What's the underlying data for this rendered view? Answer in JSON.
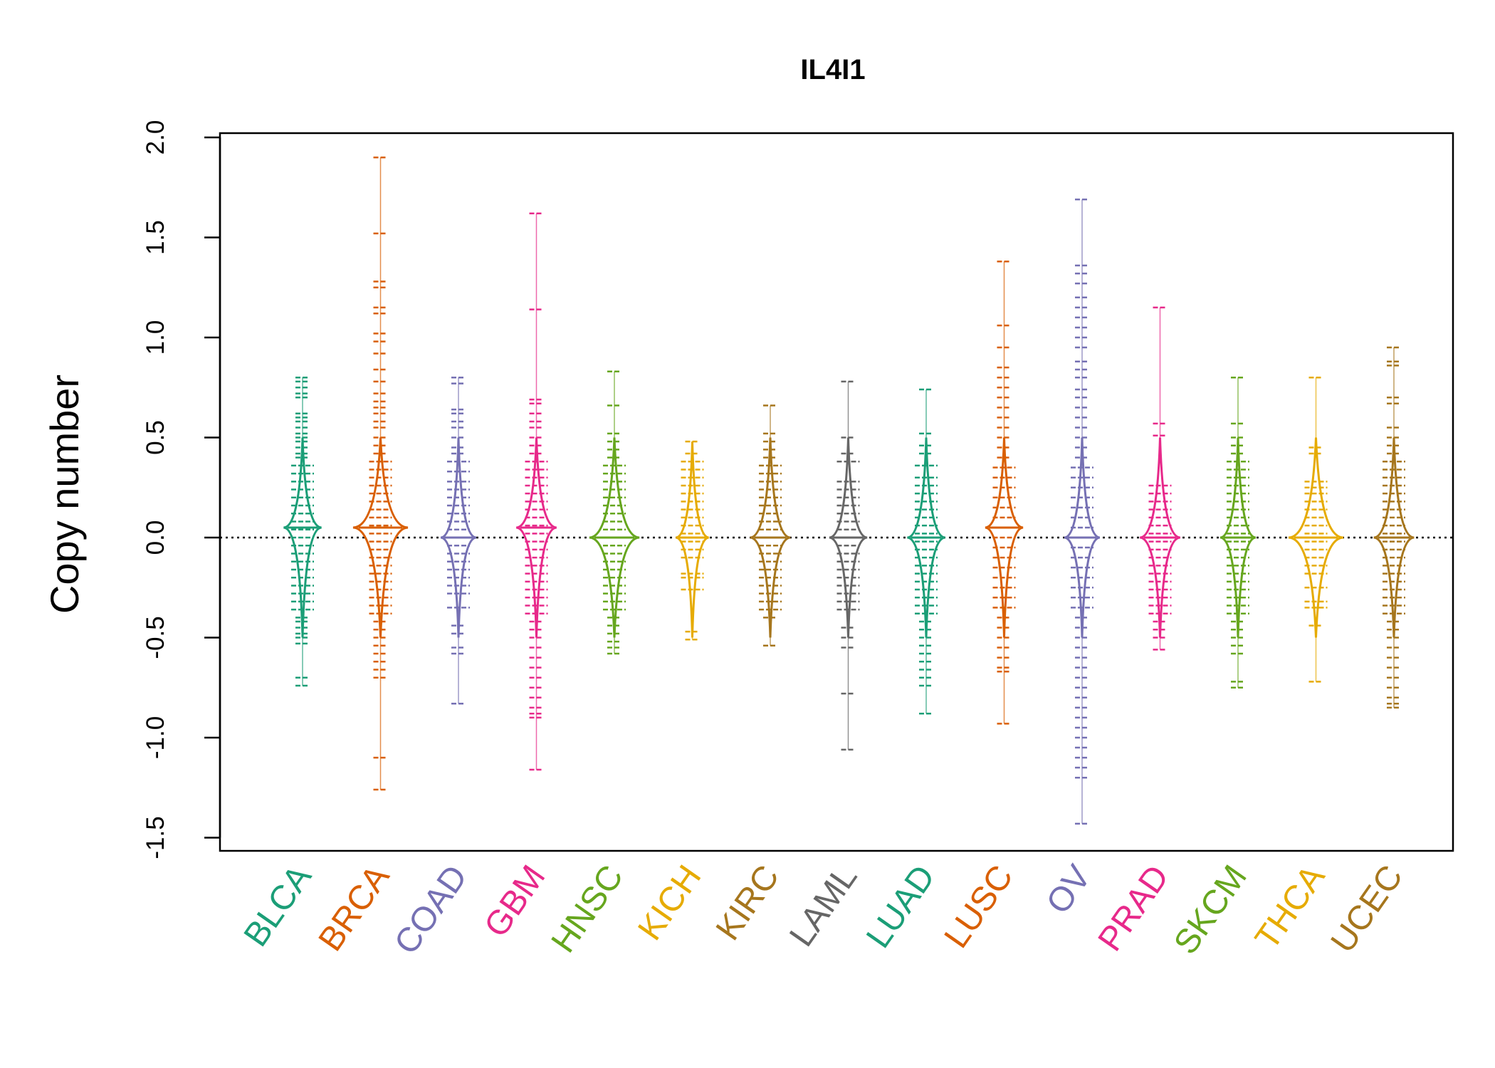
{
  "chart_data": {
    "type": "scatter",
    "subtype": "beanplot",
    "title": "IL4I1",
    "xlabel": "",
    "ylabel": "Copy number",
    "ylim": [
      -1.5,
      2.0
    ],
    "yticks": [
      "-1.5",
      "-1.0",
      "-0.5",
      "0.0",
      "0.5",
      "1.0",
      "1.5",
      "2.0"
    ],
    "reference_line": 0.0,
    "grid": false,
    "categories": [
      {
        "name": "BLCA",
        "color": "#1B9E77",
        "median": 0.05,
        "width": 0.55,
        "points": [
          0.8,
          0.78,
          0.75,
          0.72,
          0.7,
          0.62,
          0.6,
          0.58,
          0.55,
          0.52,
          0.5,
          0.48,
          0.45,
          0.42,
          0.4,
          0.36,
          0.32,
          0.28,
          0.24,
          0.2,
          0.16,
          0.12,
          0.08,
          0.04,
          0.0,
          -0.04,
          -0.08,
          -0.12,
          -0.16,
          -0.2,
          -0.24,
          -0.28,
          -0.32,
          -0.36,
          -0.4,
          -0.42,
          -0.45,
          -0.48,
          -0.5,
          -0.53,
          -0.7,
          -0.74
        ]
      },
      {
        "name": "BRCA",
        "color": "#D95F02",
        "median": 0.05,
        "width": 0.9,
        "points": [
          1.9,
          1.52,
          1.28,
          1.25,
          1.15,
          1.12,
          1.02,
          0.98,
          0.92,
          0.84,
          0.78,
          0.72,
          0.68,
          0.65,
          0.62,
          0.58,
          0.55,
          0.5,
          0.46,
          0.42,
          0.38,
          0.34,
          0.3,
          0.26,
          0.22,
          0.18,
          0.14,
          0.1,
          0.06,
          0.02,
          -0.02,
          -0.06,
          -0.1,
          -0.14,
          -0.18,
          -0.22,
          -0.26,
          -0.3,
          -0.34,
          -0.38,
          -0.42,
          -0.46,
          -0.5,
          -0.54,
          -0.58,
          -0.62,
          -0.66,
          -0.7,
          -1.1,
          -1.26
        ]
      },
      {
        "name": "COAD",
        "color": "#7570B3",
        "median": 0.0,
        "width": 0.5,
        "points": [
          0.8,
          0.77,
          0.64,
          0.62,
          0.58,
          0.55,
          0.5,
          0.45,
          0.42,
          0.38,
          0.33,
          0.28,
          0.24,
          0.2,
          0.16,
          0.12,
          0.08,
          0.04,
          0.0,
          -0.04,
          -0.08,
          -0.12,
          -0.16,
          -0.2,
          -0.24,
          -0.28,
          -0.35,
          -0.44,
          -0.48,
          -0.55,
          -0.58,
          -0.83
        ]
      },
      {
        "name": "GBM",
        "color": "#E7298A",
        "median": 0.05,
        "width": 0.6,
        "points": [
          1.62,
          1.14,
          0.69,
          0.67,
          0.62,
          0.58,
          0.55,
          0.5,
          0.46,
          0.42,
          0.38,
          0.34,
          0.3,
          0.26,
          0.22,
          0.18,
          0.14,
          0.1,
          0.06,
          0.02,
          -0.02,
          -0.06,
          -0.1,
          -0.14,
          -0.18,
          -0.22,
          -0.26,
          -0.3,
          -0.34,
          -0.38,
          -0.42,
          -0.46,
          -0.5,
          -0.55,
          -0.6,
          -0.65,
          -0.7,
          -0.75,
          -0.8,
          -0.85,
          -0.88,
          -0.9,
          -1.16
        ]
      },
      {
        "name": "HNSC",
        "color": "#66A61E",
        "median": 0.0,
        "width": 0.8,
        "points": [
          0.83,
          0.66,
          0.52,
          0.48,
          0.44,
          0.4,
          0.36,
          0.32,
          0.28,
          0.24,
          0.2,
          0.16,
          0.12,
          0.08,
          0.04,
          0.0,
          -0.04,
          -0.08,
          -0.12,
          -0.16,
          -0.2,
          -0.24,
          -0.28,
          -0.32,
          -0.36,
          -0.4,
          -0.44,
          -0.48,
          -0.52,
          -0.55,
          -0.58
        ]
      },
      {
        "name": "KICH",
        "color": "#E6AB02",
        "median": 0.0,
        "width": 0.45,
        "points": [
          0.48,
          0.42,
          0.38,
          0.34,
          0.3,
          0.26,
          0.22,
          0.18,
          0.14,
          0.1,
          0.06,
          0.02,
          -0.02,
          -0.06,
          -0.1,
          -0.18,
          -0.2,
          -0.26,
          -0.47,
          -0.51
        ]
      },
      {
        "name": "KIRC",
        "color": "#A6761D",
        "median": 0.0,
        "width": 0.6,
        "points": [
          0.66,
          0.52,
          0.48,
          0.44,
          0.4,
          0.36,
          0.32,
          0.28,
          0.24,
          0.2,
          0.16,
          0.12,
          0.08,
          0.04,
          0.0,
          -0.04,
          -0.08,
          -0.12,
          -0.16,
          -0.2,
          -0.24,
          -0.28,
          -0.32,
          -0.36,
          -0.4,
          -0.54
        ]
      },
      {
        "name": "LAML",
        "color": "#666666",
        "median": 0.0,
        "width": 0.55,
        "points": [
          0.78,
          0.5,
          0.42,
          0.38,
          0.28,
          0.24,
          0.2,
          0.16,
          0.12,
          0.08,
          0.04,
          0.0,
          -0.04,
          -0.08,
          -0.12,
          -0.16,
          -0.2,
          -0.24,
          -0.28,
          -0.32,
          -0.36,
          -0.45,
          -0.5,
          -0.55,
          -0.78,
          -1.06
        ]
      },
      {
        "name": "LUAD",
        "color": "#1B9E77",
        "median": 0.0,
        "width": 0.55,
        "points": [
          0.74,
          0.52,
          0.46,
          0.42,
          0.36,
          0.3,
          0.26,
          0.22,
          0.18,
          0.14,
          0.1,
          0.06,
          0.02,
          -0.02,
          -0.06,
          -0.1,
          -0.14,
          -0.18,
          -0.22,
          -0.26,
          -0.3,
          -0.34,
          -0.38,
          -0.42,
          -0.46,
          -0.5,
          -0.54,
          -0.58,
          -0.62,
          -0.66,
          -0.7,
          -0.74,
          -0.88
        ]
      },
      {
        "name": "LUSC",
        "color": "#D95F02",
        "median": 0.05,
        "width": 0.55,
        "points": [
          1.38,
          1.06,
          0.95,
          0.85,
          0.8,
          0.75,
          0.7,
          0.65,
          0.6,
          0.55,
          0.5,
          0.45,
          0.4,
          0.35,
          0.3,
          0.25,
          0.2,
          0.15,
          0.1,
          0.05,
          0.0,
          -0.05,
          -0.1,
          -0.15,
          -0.2,
          -0.25,
          -0.3,
          -0.35,
          -0.4,
          -0.45,
          -0.5,
          -0.55,
          -0.6,
          -0.65,
          -0.67,
          -0.93
        ]
      },
      {
        "name": "OV",
        "color": "#7570B3",
        "median": 0.0,
        "width": 0.5,
        "points": [
          1.69,
          1.36,
          1.32,
          1.27,
          1.2,
          1.15,
          1.1,
          1.05,
          1.0,
          0.95,
          0.88,
          0.84,
          0.8,
          0.74,
          0.7,
          0.65,
          0.6,
          0.55,
          0.5,
          0.45,
          0.4,
          0.35,
          0.3,
          0.25,
          0.2,
          0.15,
          0.1,
          0.05,
          0.0,
          -0.05,
          -0.1,
          -0.15,
          -0.2,
          -0.25,
          -0.3,
          -0.35,
          -0.4,
          -0.45,
          -0.5,
          -0.55,
          -0.6,
          -0.65,
          -0.7,
          -0.75,
          -0.8,
          -0.85,
          -0.9,
          -0.95,
          -1.0,
          -1.05,
          -1.1,
          -1.15,
          -1.2,
          -1.43
        ]
      },
      {
        "name": "PRAD",
        "color": "#E7298A",
        "median": 0.0,
        "width": 0.6,
        "points": [
          1.15,
          0.57,
          0.51,
          0.26,
          0.22,
          0.18,
          0.14,
          0.1,
          0.06,
          0.02,
          -0.02,
          -0.06,
          -0.1,
          -0.14,
          -0.18,
          -0.22,
          -0.26,
          -0.3,
          -0.34,
          -0.38,
          -0.42,
          -0.46,
          -0.5,
          -0.56
        ]
      },
      {
        "name": "SKCM",
        "color": "#66A61E",
        "median": 0.0,
        "width": 0.5,
        "points": [
          0.8,
          0.57,
          0.5,
          0.46,
          0.42,
          0.38,
          0.34,
          0.3,
          0.26,
          0.22,
          0.18,
          0.14,
          0.1,
          0.06,
          0.02,
          -0.02,
          -0.06,
          -0.1,
          -0.14,
          -0.18,
          -0.22,
          -0.26,
          -0.3,
          -0.34,
          -0.38,
          -0.42,
          -0.46,
          -0.5,
          -0.54,
          -0.58,
          -0.72,
          -0.75
        ]
      },
      {
        "name": "THCA",
        "color": "#E6AB02",
        "median": 0.0,
        "width": 0.9,
        "points": [
          0.8,
          0.45,
          0.42,
          0.28,
          0.25,
          0.22,
          0.18,
          0.14,
          0.1,
          0.06,
          0.02,
          -0.02,
          -0.06,
          -0.1,
          -0.14,
          -0.18,
          -0.25,
          -0.32,
          -0.35,
          -0.44,
          -0.72
        ]
      },
      {
        "name": "UCEC",
        "color": "#A6761D",
        "median": 0.0,
        "width": 0.6,
        "points": [
          0.95,
          0.88,
          0.86,
          0.7,
          0.67,
          0.55,
          0.5,
          0.46,
          0.42,
          0.38,
          0.34,
          0.3,
          0.26,
          0.22,
          0.18,
          0.14,
          0.1,
          0.06,
          0.02,
          -0.02,
          -0.06,
          -0.1,
          -0.14,
          -0.18,
          -0.22,
          -0.26,
          -0.3,
          -0.34,
          -0.38,
          -0.42,
          -0.46,
          -0.5,
          -0.55,
          -0.6,
          -0.65,
          -0.7,
          -0.75,
          -0.8,
          -0.83,
          -0.85
        ]
      }
    ]
  }
}
